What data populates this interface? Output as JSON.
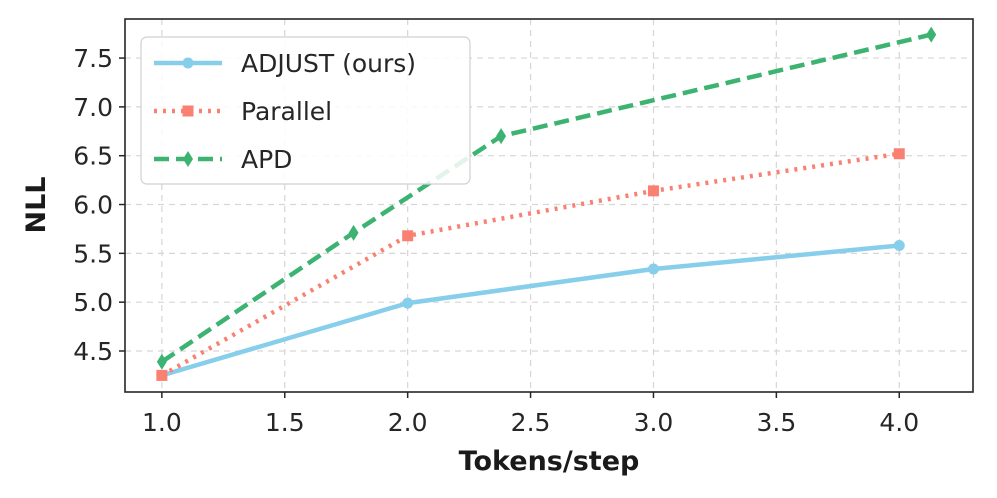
{
  "chart_data": {
    "type": "line",
    "title": "",
    "xlabel": "Tokens/step",
    "ylabel": "NLL",
    "xlim": [
      0.85,
      4.3
    ],
    "ylim": [
      4.08,
      7.9
    ],
    "xticks": [
      1.0,
      1.5,
      2.0,
      2.5,
      3.0,
      3.5,
      4.0
    ],
    "xtick_labels": [
      "1.0",
      "1.5",
      "2.0",
      "2.5",
      "3.0",
      "3.5",
      "4.0"
    ],
    "yticks": [
      4.5,
      5.0,
      5.5,
      6.0,
      6.5,
      7.0,
      7.5
    ],
    "ytick_labels": [
      "4.5",
      "5.0",
      "5.5",
      "6.0",
      "6.5",
      "7.0",
      "7.5"
    ],
    "grid": true,
    "legend_position": "top-left",
    "series": [
      {
        "name": "ADJUST (ours)",
        "color": "#87ceeb",
        "line_style": "solid",
        "marker": "circle",
        "points": [
          [
            1.0,
            4.25
          ],
          [
            2.0,
            4.99
          ],
          [
            3.0,
            5.34
          ],
          [
            4.0,
            5.58
          ]
        ]
      },
      {
        "name": "Parallel",
        "color": "#fa8072",
        "line_style": "dotted",
        "marker": "square",
        "points": [
          [
            1.0,
            4.25
          ],
          [
            2.0,
            5.68
          ],
          [
            3.0,
            6.14
          ],
          [
            4.0,
            6.52
          ]
        ]
      },
      {
        "name": "APD",
        "color": "#3cb371",
        "line_style": "dashed",
        "marker": "diamond",
        "points": [
          [
            1.0,
            4.39
          ],
          [
            1.78,
            5.71
          ],
          [
            2.38,
            6.7
          ],
          [
            4.13,
            7.74
          ]
        ]
      }
    ]
  }
}
